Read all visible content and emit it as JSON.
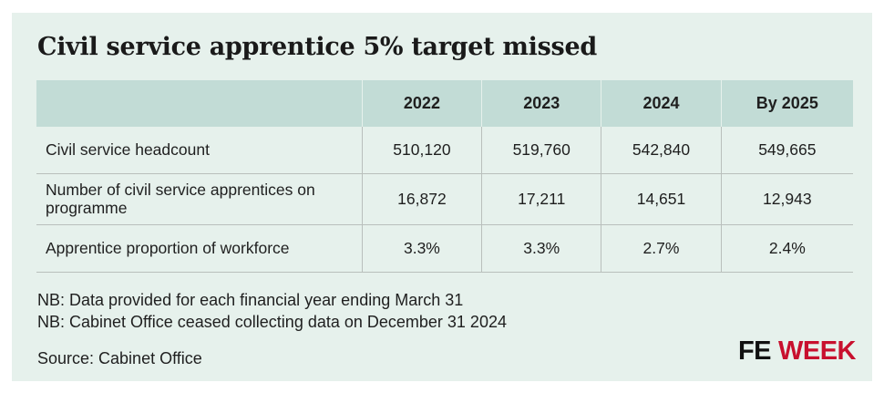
{
  "title": "Civil service apprentice 5% target missed",
  "table": {
    "headers": [
      "",
      "2022",
      "2023",
      "2024",
      "By 2025"
    ],
    "rows": [
      {
        "label": "Civil service headcount",
        "values": [
          "510,120",
          "519,760",
          "542,840",
          "549,665"
        ]
      },
      {
        "label": "Number of civil service apprentices on programme",
        "values": [
          "16,872",
          "17,211",
          "14,651",
          "12,943"
        ]
      },
      {
        "label": "Apprentice proportion of workforce",
        "values": [
          "3.3%",
          "3.3%",
          "2.7%",
          "2.4%"
        ]
      }
    ]
  },
  "notes": [
    "NB: Data provided for each financial year ending March 31",
    "NB: Cabinet Office ceased collecting data on December 31 2024"
  ],
  "source": "Source: Cabinet Office",
  "logo": {
    "fe": "FE",
    "week": "WEEK"
  },
  "colors": {
    "background": "#e6f1ec",
    "header": "#c2dcd6",
    "brand_red": "#c8102e"
  }
}
